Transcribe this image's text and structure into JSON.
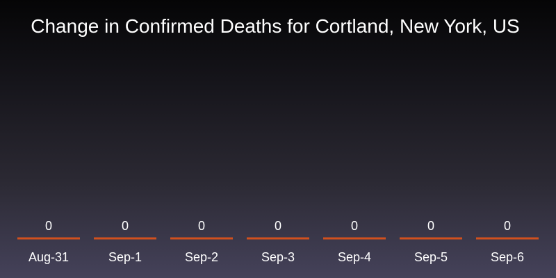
{
  "chart_data": {
    "type": "bar",
    "title": "Change in Confirmed Deaths for Cortland, New York, US",
    "categories": [
      "Aug-31",
      "Sep-1",
      "Sep-2",
      "Sep-3",
      "Sep-4",
      "Sep-5",
      "Sep-6"
    ],
    "values": [
      0,
      0,
      0,
      0,
      0,
      0,
      0
    ],
    "data_labels": [
      "0",
      "0",
      "0",
      "0",
      "0",
      "0",
      "0"
    ],
    "xlabel": "",
    "ylabel": "",
    "grid": false,
    "legend": "none",
    "bar_color": "#d2501e"
  }
}
